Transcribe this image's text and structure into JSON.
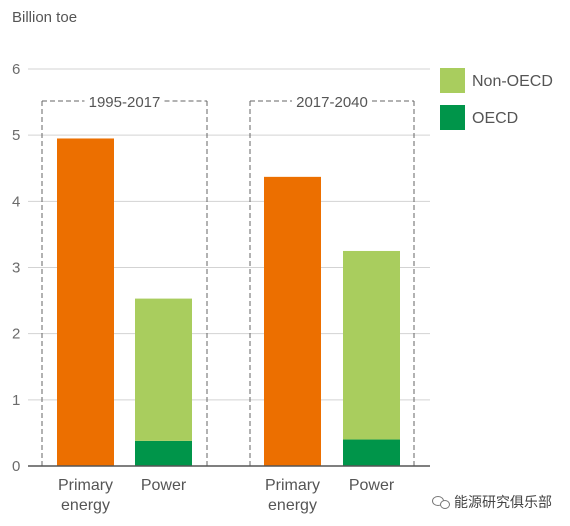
{
  "chart_data": {
    "type": "bar",
    "ylabel": "Billion toe",
    "ylim": [
      0,
      6
    ],
    "yticks": [
      0,
      1,
      2,
      3,
      4,
      5,
      6
    ],
    "grid": true,
    "legend_position": "right",
    "groups": [
      {
        "period": "1995-2017",
        "categories": [
          "Primary\nenergy",
          "Power"
        ]
      },
      {
        "period": "2017-2040",
        "categories": [
          "Primary\nenergy",
          "Power"
        ]
      }
    ],
    "bars": [
      {
        "group": 0,
        "category": "Primary energy",
        "segments": [
          {
            "series": "Primary energy",
            "value": 4.95
          }
        ]
      },
      {
        "group": 0,
        "category": "Power",
        "segments": [
          {
            "series": "OECD",
            "value": 0.38
          },
          {
            "series": "Non-OECD",
            "value": 2.15
          }
        ]
      },
      {
        "group": 1,
        "category": "Primary energy",
        "segments": [
          {
            "series": "Primary energy",
            "value": 4.37
          }
        ]
      },
      {
        "group": 1,
        "category": "Power",
        "segments": [
          {
            "series": "OECD",
            "value": 0.4
          },
          {
            "series": "Non-OECD",
            "value": 2.85
          }
        ]
      }
    ],
    "legend": [
      {
        "name": "Non-OECD",
        "color": "#a9cd5e"
      },
      {
        "name": "OECD",
        "color": "#00954a"
      }
    ],
    "colors": {
      "Primary energy": "#ec6f00",
      "Non-OECD": "#a9cd5e",
      "OECD": "#00954a"
    },
    "category_labels": [
      {
        "line1": "Primary",
        "line2": "energy"
      },
      {
        "line1": "Power",
        "line2": ""
      },
      {
        "line1": "Primary",
        "line2": "energy"
      },
      {
        "line1": "Power",
        "line2": ""
      }
    ]
  },
  "watermark": {
    "text": "能源研究俱乐部"
  }
}
